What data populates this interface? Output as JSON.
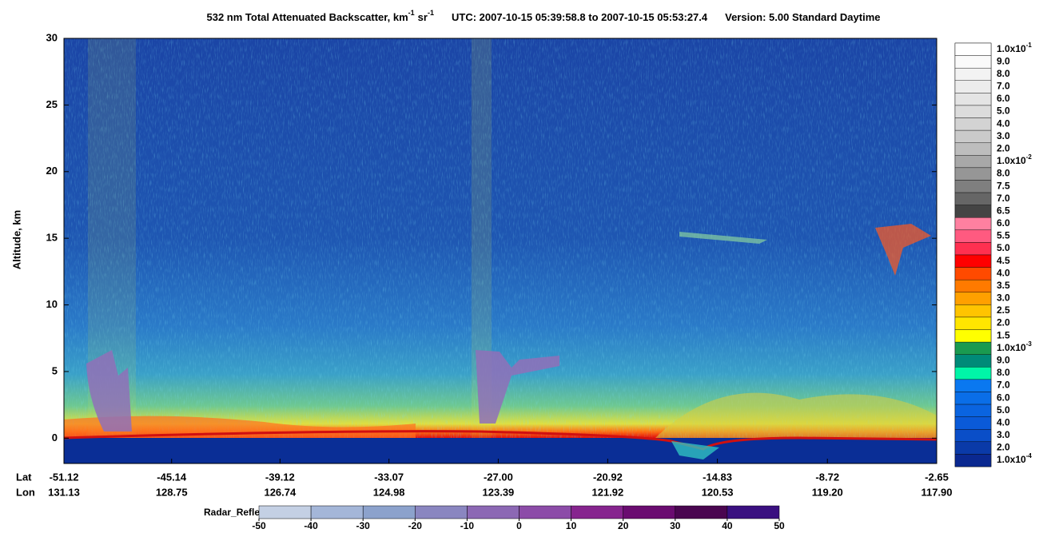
{
  "chart_data": {
    "type": "lidar-curtain",
    "title": "532 nm Total Attenuated Backscatter, km",
    "title_exp1": "-1",
    "title_sr": "sr",
    "title_exp2": "-1",
    "title_utc": "UTC:  2007-10-15 05:39:58.8  to  2007-10-15 05:53:27.4",
    "title_version": "Version: 5.00  Standard  Daytime",
    "ylabel": "Altitude, km",
    "ylim": [
      -1.9,
      30
    ],
    "yticks": [
      0,
      5,
      10,
      15,
      20,
      25,
      30
    ],
    "xlim": [
      -51.12,
      -2.65
    ],
    "lat_label": "Lat",
    "lon_label": "Lon",
    "xticks": [
      -51.12,
      -45.14,
      -39.12,
      -33.07,
      {
        "value": -27,
        "label": "-27.00"
      },
      -20.92,
      -14.83,
      -8.72,
      -2.65
    ],
    "lon_ticks": [
      "131.13",
      "128.75",
      "126.74",
      "124.98",
      "123.39",
      "121.92",
      "120.53",
      "119.20",
      "117.90"
    ],
    "colorbar": [
      {
        "label": "1.0x10",
        "exp": "-1",
        "color": "#ffffff"
      },
      {
        "label": "9.0",
        "color": "#fafafa"
      },
      {
        "label": "8.0",
        "color": "#f3f3f3"
      },
      {
        "label": "7.0",
        "color": "#ececec"
      },
      {
        "label": "6.0",
        "color": "#e4e4e4"
      },
      {
        "label": "5.0",
        "color": "#dcdcdc"
      },
      {
        "label": "4.0",
        "color": "#d3d3d3"
      },
      {
        "label": "3.0",
        "color": "#cacaca"
      },
      {
        "label": "2.0",
        "color": "#bdbdbd"
      },
      {
        "label": "1.0x10",
        "exp": "-2",
        "color": "#a8a8a8"
      },
      {
        "label": "8.0",
        "color": "#969696"
      },
      {
        "label": "7.5",
        "color": "#7f7f7f"
      },
      {
        "label": "7.0",
        "color": "#666666"
      },
      {
        "label": "6.5",
        "color": "#444444"
      },
      {
        "label": "6.0",
        "color": "#ff80a0"
      },
      {
        "label": "5.5",
        "color": "#ff5a80"
      },
      {
        "label": "5.0",
        "color": "#ff3050"
      },
      {
        "label": "4.5",
        "color": "#ff0000"
      },
      {
        "label": "4.0",
        "color": "#ff4a00"
      },
      {
        "label": "3.5",
        "color": "#ff7a00"
      },
      {
        "label": "3.0",
        "color": "#ffa000"
      },
      {
        "label": "2.5",
        "color": "#ffc400"
      },
      {
        "label": "2.0",
        "color": "#ffe600"
      },
      {
        "label": "1.5",
        "color": "#ffff00"
      },
      {
        "label": "1.0x10",
        "exp": "-3",
        "color": "#1a9a50"
      },
      {
        "label": "9.0",
        "color": "#008a78"
      },
      {
        "label": "8.0",
        "color": "#00f5a8"
      },
      {
        "label": "7.0",
        "color": "#0a78f0"
      },
      {
        "label": "6.0",
        "color": "#0a6ee8"
      },
      {
        "label": "5.0",
        "color": "#0a64e0"
      },
      {
        "label": "4.0",
        "color": "#0a5ad8"
      },
      {
        "label": "3.0",
        "color": "#0a4ec8"
      },
      {
        "label": "2.0",
        "color": "#0a3aa8"
      },
      {
        "label": "1.0x10",
        "exp": "-4",
        "color": "#0a2890"
      }
    ],
    "radar_label": "Radar_Reflectivity",
    "radar_lim": [
      -50,
      50
    ],
    "radar_ticks": [
      -50,
      -40,
      -30,
      -20,
      -10,
      0,
      10,
      20,
      30,
      40,
      50
    ],
    "radar_colors": [
      "#c4d0e4",
      "#a4b6d8",
      "#8ca2cc",
      "#8a86c0",
      "#8c68b4",
      "#8c4ca8",
      "#86248e",
      "#6a0c70",
      "#4a0650",
      "#3a1080"
    ]
  }
}
